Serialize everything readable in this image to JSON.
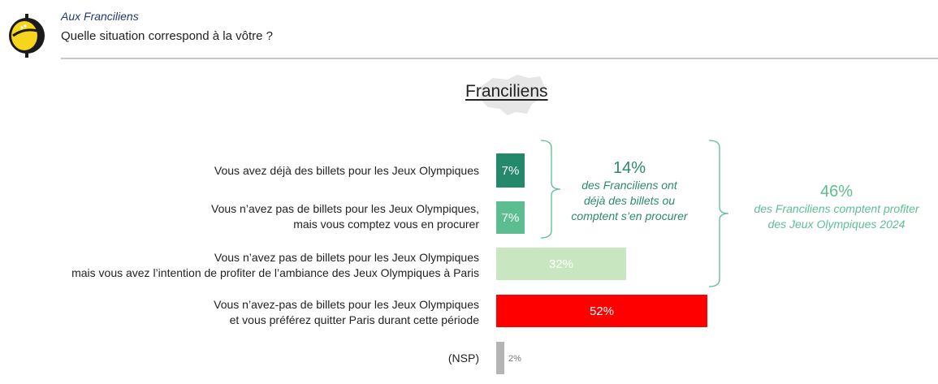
{
  "header": {
    "subtitle": "Aux Franciliens",
    "question": "Quelle situation correspond à la vôtre ?"
  },
  "panel": {
    "title": "Franciliens"
  },
  "colors": {
    "bar_dark_green": "#24896b",
    "bar_mid_green": "#5cbe90",
    "bar_light_green": "#c8e6c0",
    "bar_red": "#ff0000",
    "bar_grey": "#b5b5b5",
    "bracket_green": "#5cbe90",
    "logo_yellow": "#f7d51d",
    "logo_black": "#1a1a1a"
  },
  "chart_data": {
    "type": "bar",
    "orientation": "horizontal",
    "categories": [
      "Vous avez déjà des billets pour les Jeux Olympiques",
      "Vous n’avez pas de billets pour les Jeux Olympiques, mais vous comptez vous en procurer",
      "Vous n’avez pas de billets pour les Jeux Olympiques mais vous avez l’intention de profiter de l’ambiance des Jeux Olympiques à Paris",
      "Vous n’avez-pas de billets pour les Jeux Olympiques et vous préférez quitter Paris durant cette période",
      "(NSP)"
    ],
    "category_lines": [
      [
        "Vous avez déjà des billets pour les Jeux Olympiques"
      ],
      [
        "Vous n’avez pas de billets pour les Jeux Olympiques,",
        "mais vous comptez vous en procurer"
      ],
      [
        "Vous n’avez pas de billets pour les Jeux Olympiques",
        "mais vous avez l’intention de profiter de l’ambiance des Jeux Olympiques à Paris"
      ],
      [
        "Vous n’avez-pas de billets pour les Jeux Olympiques",
        "et vous préférez quitter Paris durant cette période"
      ],
      [
        "(NSP)"
      ]
    ],
    "values": [
      7,
      7,
      32,
      52,
      2
    ],
    "labels": [
      "7%",
      "7%",
      "32%",
      "52%",
      "2%"
    ],
    "unit": "%",
    "title": "Franciliens",
    "xlim": [
      0,
      52
    ],
    "annotations": [
      {
        "value": "14%",
        "text_lines": [
          "des Franciliens ont",
          "déjà des billets ou",
          "comptent s’en procurer"
        ],
        "groups": [
          0,
          1
        ]
      },
      {
        "value": "46%",
        "text_lines": [
          "des Franciliens comptent profiter",
          "des Jeux Olympiques 2024"
        ],
        "groups": [
          0,
          1,
          2
        ]
      }
    ]
  }
}
